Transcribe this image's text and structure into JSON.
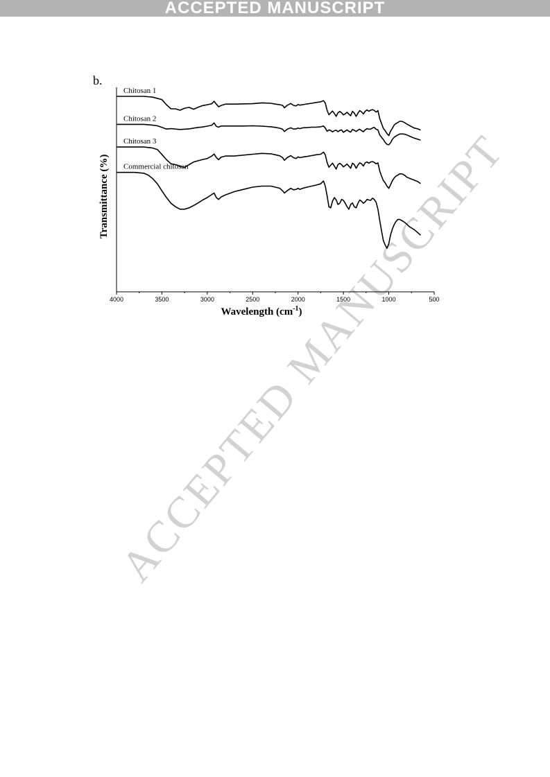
{
  "banner": {
    "text": "ACCEPTED MANUSCRIPT"
  },
  "watermark": {
    "text": "ACCEPTED MANUSCRIPT"
  },
  "panel": {
    "label": "b."
  },
  "chart_data": {
    "type": "line",
    "xlabel": "Wavelength (cm",
    "xlabel_sup": "-1",
    "xlabel_close": ")",
    "ylabel": "Transmittance (%)",
    "xlim": [
      4000,
      500
    ],
    "x_reversed": true,
    "ylim": [
      0,
      100
    ],
    "y_ticks_shown": false,
    "grid": false,
    "x_ticks": [
      4000,
      3500,
      3000,
      2500,
      2000,
      1500,
      1000,
      500
    ],
    "x_tick_labels": [
      "4000",
      "3500",
      "3000",
      "2500",
      "2000",
      "1500",
      "1000",
      "500"
    ],
    "series": [
      {
        "name": "Chitosan 1",
        "x": [
          4000,
          3700,
          3600,
          3500,
          3450,
          3400,
          3350,
          3300,
          3250,
          3200,
          3150,
          3100,
          3050,
          3000,
          2950,
          2925,
          2900,
          2875,
          2850,
          2800,
          2700,
          2500,
          2400,
          2300,
          2250,
          2200,
          2170,
          2150,
          2120,
          2080,
          2050,
          2020,
          2000,
          1980,
          1950,
          1900,
          1850,
          1800,
          1750,
          1720,
          1700,
          1680,
          1660,
          1640,
          1620,
          1600,
          1580,
          1560,
          1540,
          1520,
          1500,
          1480,
          1460,
          1440,
          1420,
          1400,
          1380,
          1360,
          1340,
          1320,
          1300,
          1280,
          1260,
          1240,
          1220,
          1200,
          1180,
          1160,
          1140,
          1120,
          1100,
          1080,
          1060,
          1040,
          1020,
          1000,
          980,
          960,
          940,
          920,
          900,
          880,
          860,
          840,
          820,
          800,
          760,
          720,
          680,
          650
        ],
        "y": [
          95.6,
          95.6,
          95.2,
          94.0,
          91.5,
          89.5,
          89.5,
          88.8,
          89.8,
          90.2,
          89.3,
          90.3,
          91.1,
          91.5,
          92.0,
          93.2,
          91.8,
          90.5,
          91.1,
          91.8,
          91.8,
          92.0,
          92.4,
          92.2,
          91.8,
          91.5,
          91.2,
          90.0,
          91.2,
          92.1,
          91.2,
          90.9,
          91.6,
          91.3,
          91.5,
          91.9,
          92.2,
          92.6,
          92.9,
          93.5,
          92.3,
          88.8,
          86.6,
          87.5,
          88.4,
          87.2,
          85.8,
          87.6,
          88.2,
          87.6,
          86.5,
          87.1,
          87.8,
          86.9,
          86.1,
          88.3,
          87.4,
          85.8,
          87.4,
          88.6,
          88.0,
          87.0,
          88.3,
          88.9,
          88.3,
          88.8,
          89.1,
          88.7,
          87.9,
          88.6,
          84.7,
          82.3,
          79.9,
          78.8,
          77.4,
          76.4,
          78.6,
          80.0,
          81.6,
          82.3,
          82.8,
          83.4,
          83.4,
          83.1,
          82.6,
          82.0,
          81.0,
          80.1,
          79.7,
          79.1
        ]
      },
      {
        "name": "Chitosan 2",
        "x": [
          4000,
          3700,
          3600,
          3550,
          3500,
          3450,
          3400,
          3300,
          3200,
          3100,
          3050,
          3000,
          2950,
          2925,
          2900,
          2875,
          2850,
          2800,
          2700,
          2600,
          2500,
          2400,
          2300,
          2250,
          2200,
          2170,
          2150,
          2120,
          2080,
          2050,
          2020,
          2000,
          1980,
          1950,
          1900,
          1850,
          1800,
          1750,
          1720,
          1700,
          1680,
          1660,
          1640,
          1620,
          1600,
          1580,
          1560,
          1540,
          1520,
          1500,
          1480,
          1460,
          1440,
          1420,
          1400,
          1380,
          1360,
          1340,
          1320,
          1300,
          1280,
          1260,
          1240,
          1220,
          1200,
          1180,
          1160,
          1140,
          1120,
          1100,
          1080,
          1060,
          1040,
          1020,
          1000,
          980,
          960,
          940,
          920,
          900,
          880,
          860,
          840,
          820,
          800,
          760,
          720,
          680,
          650
        ],
        "y": [
          81.9,
          81.9,
          81.5,
          81.2,
          80.4,
          79.6,
          79.8,
          79.4,
          79.7,
          80.4,
          80.6,
          81.0,
          81.5,
          82.6,
          80.9,
          80.5,
          81.1,
          81.1,
          81.1,
          81.1,
          81.2,
          81.0,
          80.7,
          80.4,
          80.0,
          79.5,
          78.4,
          79.5,
          80.2,
          79.6,
          79.7,
          80.1,
          79.8,
          80.2,
          80.3,
          80.5,
          80.5,
          80.7,
          81.1,
          80.1,
          78.5,
          79.2,
          78.9,
          78.2,
          78.8,
          79.0,
          78.3,
          78.9,
          79.2,
          78.0,
          78.6,
          79.2,
          78.5,
          78.1,
          79.4,
          79.0,
          78.4,
          79.1,
          79.5,
          78.8,
          78.3,
          79.2,
          79.8,
          79.5,
          79.6,
          80.1,
          80.4,
          79.5,
          79.2,
          76.7,
          75.6,
          74.5,
          73.1,
          72.1,
          71.9,
          72.9,
          74.6,
          75.6,
          76.2,
          76.7,
          77.2,
          77.2,
          77.2,
          77.0,
          76.7,
          75.9,
          75.2,
          74.6,
          74.2
        ]
      },
      {
        "name": "Chitosan 3",
        "x": [
          4000,
          3700,
          3600,
          3550,
          3500,
          3450,
          3400,
          3350,
          3300,
          3250,
          3200,
          3150,
          3100,
          3050,
          3000,
          2950,
          2925,
          2900,
          2875,
          2850,
          2800,
          2700,
          2500,
          2400,
          2300,
          2250,
          2200,
          2170,
          2150,
          2120,
          2080,
          2050,
          2020,
          2000,
          1980,
          1950,
          1900,
          1850,
          1800,
          1750,
          1720,
          1700,
          1680,
          1660,
          1640,
          1620,
          1600,
          1580,
          1560,
          1540,
          1520,
          1500,
          1480,
          1460,
          1440,
          1420,
          1400,
          1380,
          1360,
          1340,
          1320,
          1300,
          1280,
          1260,
          1240,
          1220,
          1200,
          1180,
          1160,
          1140,
          1120,
          1100,
          1080,
          1060,
          1040,
          1020,
          1000,
          980,
          960,
          940,
          920,
          900,
          880,
          860,
          840,
          820,
          800,
          760,
          720,
          680,
          650
        ],
        "y": [
          70.8,
          70.8,
          70.3,
          69.6,
          67.2,
          64.6,
          62.6,
          62.2,
          61.5,
          60.8,
          62.2,
          63.5,
          64.1,
          64.7,
          65.2,
          66.4,
          67.4,
          65.7,
          64.6,
          65.8,
          66.4,
          66.4,
          67.3,
          67.7,
          67.5,
          67.0,
          66.5,
          65.6,
          64.3,
          65.6,
          66.6,
          65.6,
          65.2,
          66.0,
          65.6,
          65.9,
          66.2,
          66.6,
          67.0,
          67.3,
          68.3,
          67.0,
          63.3,
          60.9,
          61.9,
          62.9,
          61.5,
          60.0,
          62.2,
          62.8,
          62.2,
          61.1,
          61.8,
          62.5,
          61.5,
          60.4,
          62.9,
          62.2,
          60.4,
          62.0,
          63.1,
          62.6,
          61.5,
          63.1,
          63.5,
          62.9,
          63.5,
          63.7,
          63.3,
          62.6,
          63.1,
          59.1,
          56.6,
          54.4,
          53.3,
          51.7,
          50.6,
          52.4,
          54.4,
          55.7,
          56.6,
          57.1,
          57.7,
          57.7,
          57.4,
          56.8,
          56.0,
          55.3,
          54.6,
          53.9,
          52.9
        ]
      },
      {
        "name": "Commercial chitosan",
        "x": [
          4000,
          3800,
          3700,
          3650,
          3600,
          3550,
          3500,
          3450,
          3400,
          3350,
          3300,
          3250,
          3200,
          3150,
          3100,
          3050,
          3000,
          2950,
          2925,
          2900,
          2875,
          2850,
          2800,
          2700,
          2600,
          2500,
          2400,
          2300,
          2250,
          2200,
          2170,
          2150,
          2120,
          2080,
          2050,
          2020,
          2000,
          1980,
          1950,
          1900,
          1850,
          1800,
          1750,
          1720,
          1700,
          1680,
          1660,
          1640,
          1620,
          1600,
          1580,
          1560,
          1540,
          1520,
          1500,
          1480,
          1460,
          1440,
          1420,
          1400,
          1380,
          1360,
          1340,
          1320,
          1300,
          1280,
          1260,
          1240,
          1220,
          1200,
          1180,
          1160,
          1140,
          1120,
          1100,
          1080,
          1060,
          1040,
          1020,
          1000,
          980,
          960,
          940,
          920,
          900,
          880,
          860,
          840,
          820,
          800,
          780,
          760,
          720,
          680,
          650
        ],
        "y": [
          58.4,
          58.4,
          58.0,
          57.1,
          55.3,
          52.8,
          49.4,
          46.1,
          43.3,
          41.6,
          40.4,
          40.4,
          41.1,
          42.2,
          43.5,
          44.9,
          46.1,
          47.6,
          48.3,
          46.1,
          45.2,
          46.3,
          47.4,
          49.0,
          50.1,
          51.2,
          51.7,
          51.7,
          51.2,
          50.6,
          49.4,
          48.3,
          49.4,
          50.6,
          49.9,
          50.1,
          50.6,
          50.1,
          50.6,
          51.2,
          51.7,
          52.2,
          52.8,
          54.2,
          51.7,
          47.0,
          41.6,
          41.1,
          44.3,
          46.1,
          44.9,
          42.7,
          43.3,
          45.2,
          44.7,
          43.3,
          41.6,
          40.4,
          42.7,
          43.5,
          41.6,
          41.1,
          43.3,
          44.9,
          44.3,
          43.3,
          44.0,
          45.2,
          44.9,
          44.7,
          45.8,
          45.2,
          43.8,
          40.4,
          34.9,
          29.8,
          25.1,
          22.9,
          21.3,
          23.6,
          27.9,
          30.8,
          32.9,
          34.4,
          35.4,
          35.4,
          34.9,
          34.4,
          33.8,
          33.0,
          32.1,
          31.5,
          30.4,
          28.9,
          27.7
        ]
      }
    ]
  }
}
